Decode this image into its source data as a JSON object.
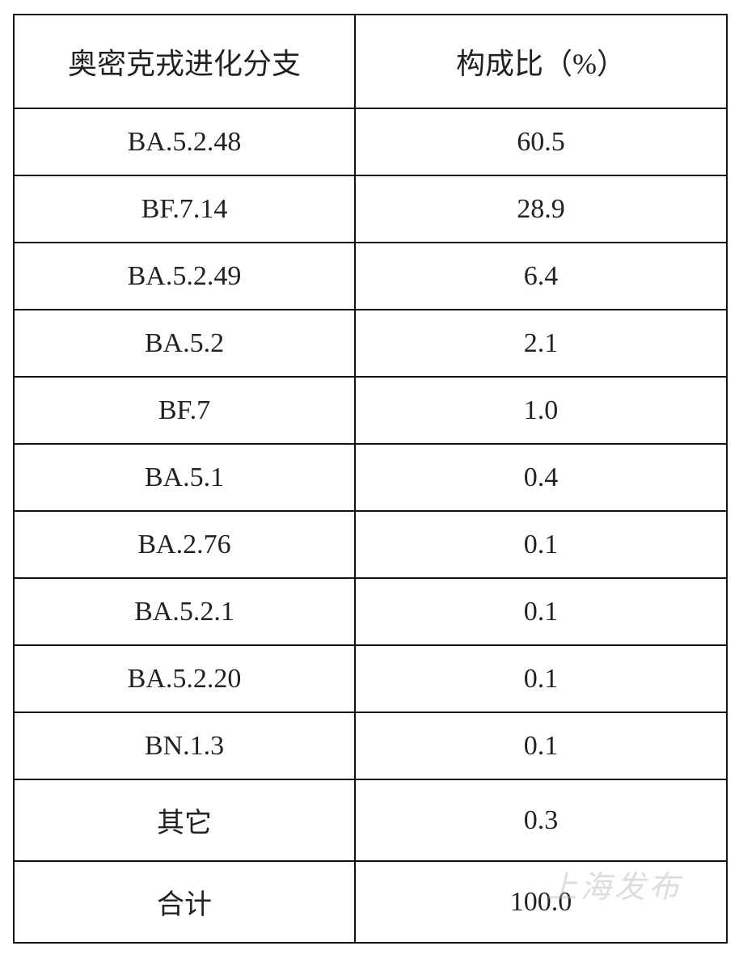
{
  "table": {
    "header": [
      "奥密克戎进化分支",
      "构成比（%）"
    ],
    "rows": [
      [
        "BA.5.2.48",
        "60.5"
      ],
      [
        "BF.7.14",
        "28.9"
      ],
      [
        "BA.5.2.49",
        "6.4"
      ],
      [
        "BA.5.2",
        "2.1"
      ],
      [
        "BF.7",
        "1.0"
      ],
      [
        "BA.5.1",
        "0.4"
      ],
      [
        "BA.2.76",
        "0.1"
      ],
      [
        "BA.5.2.1",
        "0.1"
      ],
      [
        "BA.5.2.20",
        "0.1"
      ],
      [
        "BN.1.3",
        "0.1"
      ],
      [
        "其它",
        "0.3"
      ],
      [
        "合计",
        "100.0"
      ]
    ]
  },
  "watermark": "上海发布"
}
